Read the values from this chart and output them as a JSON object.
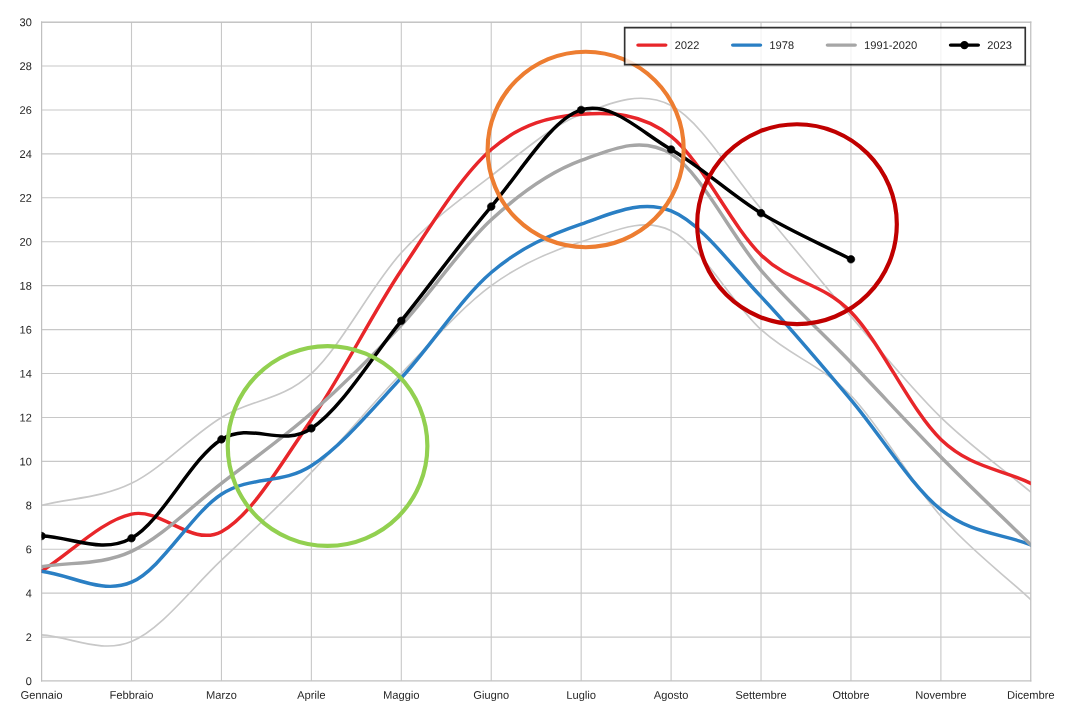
{
  "chart_data": {
    "type": "line",
    "categories": [
      "Gennaio",
      "Febbraio",
      "Marzo",
      "Aprile",
      "Maggio",
      "Giugno",
      "Luglio",
      "Agosto",
      "Settembre",
      "Ottobre",
      "Novembre",
      "Dicembre"
    ],
    "series": [
      {
        "name": "2022",
        "color": "#e8262a",
        "marker": "none",
        "values": [
          5.0,
          7.6,
          6.8,
          11.9,
          18.7,
          24.2,
          25.8,
          24.8,
          19.4,
          16.8,
          11.0,
          9.0
        ]
      },
      {
        "name": "1978",
        "color": "#2a7fc4",
        "marker": "none",
        "values": [
          5.0,
          4.5,
          8.5,
          9.8,
          13.8,
          18.6,
          20.8,
          21.4,
          17.5,
          12.8,
          7.8,
          6.2
        ]
      },
      {
        "name": "1991-2020",
        "color": "#a6a6a6",
        "marker": "none",
        "values": [
          5.2,
          5.9,
          9.0,
          12.2,
          16.2,
          21.0,
          23.7,
          24.0,
          18.7,
          14.5,
          10.2,
          6.2
        ]
      },
      {
        "name": "2023",
        "color": "#000000",
        "marker": "circle",
        "values": [
          6.6,
          6.5,
          11.0,
          11.5,
          16.4,
          21.6,
          26.0,
          24.2,
          21.3,
          19.2,
          null,
          null
        ]
      },
      {
        "color": "#c8c8c8",
        "marker": "none",
        "values": [
          8.0,
          9.0,
          12.0,
          14.0,
          19.5,
          23.0,
          25.8,
          26.2,
          21.5,
          16.6,
          12.0,
          8.6
        ]
      },
      {
        "color": "#c8c8c8",
        "marker": "none",
        "values": [
          2.1,
          1.8,
          5.5,
          9.5,
          14.0,
          18.0,
          20.0,
          20.5,
          16.0,
          13.0,
          7.5,
          3.7
        ]
      }
    ],
    "ylim": [
      0,
      30
    ],
    "yticks": [
      0,
      2,
      4,
      6,
      8,
      10,
      12,
      14,
      16,
      18,
      20,
      22,
      24,
      26,
      28,
      30
    ],
    "grid": true,
    "legend": "top right"
  }
}
